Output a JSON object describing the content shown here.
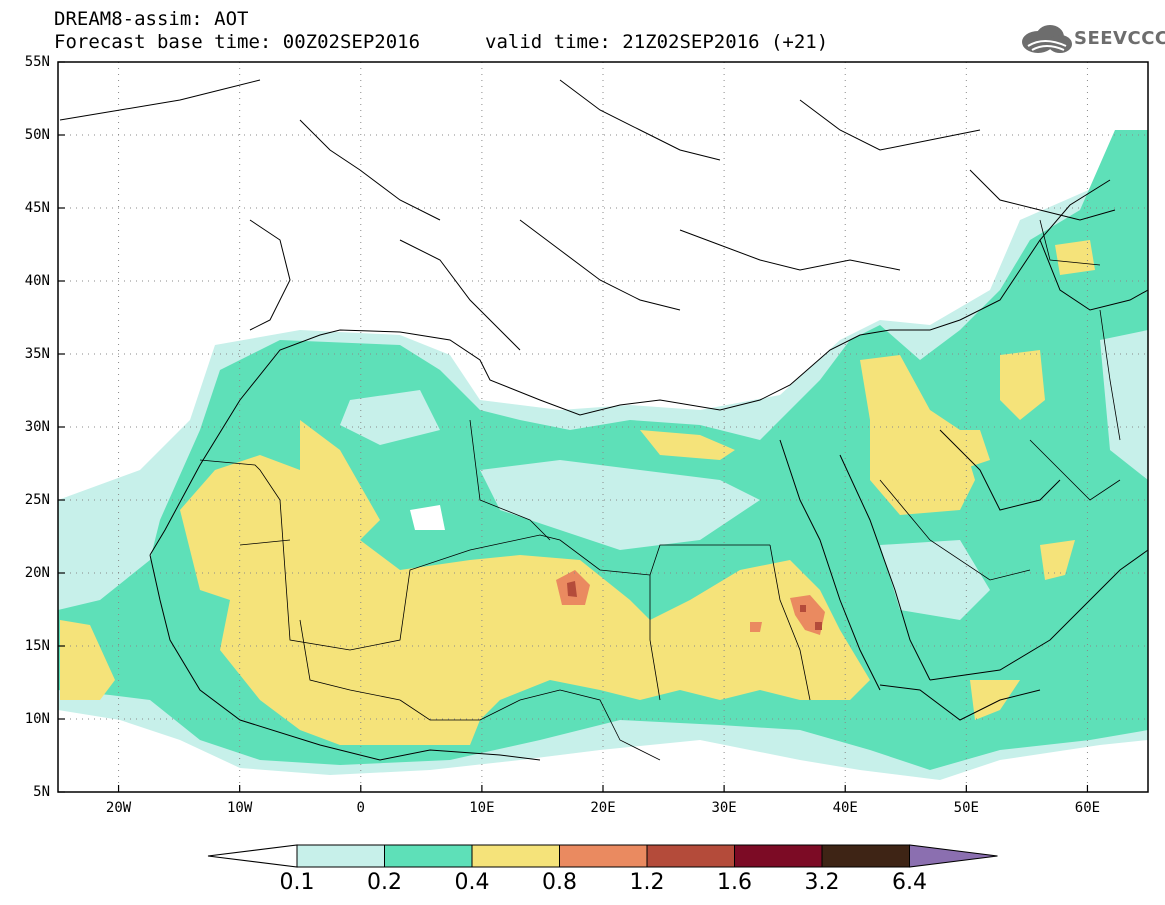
{
  "header": {
    "line1": "DREAM8-assim: AOT",
    "line2": "Forecast base time: 00Z02SEP2016",
    "valid": "valid time: 21Z02SEP2016 (+21)"
  },
  "logo": {
    "text": "SEEVCCC",
    "icon": "cloud-icon"
  },
  "map": {
    "lon_range": [
      -25,
      65
    ],
    "lat_range": [
      5,
      55
    ],
    "lat_labels": [
      "55N",
      "50N",
      "45N",
      "40N",
      "35N",
      "30N",
      "25N",
      "20N",
      "15N",
      "10N",
      "5N"
    ],
    "lon_labels": [
      "20W",
      "10W",
      "0",
      "10E",
      "20E",
      "30E",
      "40E",
      "50E",
      "60E"
    ],
    "grid": "dotted"
  },
  "colorbar": {
    "labels": [
      "0.1",
      "0.2",
      "0.4",
      "0.8",
      "1.2",
      "1.6",
      "3.2",
      "6.4"
    ],
    "colors": [
      "#c7f0ea",
      "#5ee0b8",
      "#f5e37a",
      "#ea8a60",
      "#b44b3a",
      "#7c0b25",
      "#3e2415",
      "#8b6fb0"
    ],
    "under_color": "#ffffff"
  }
}
